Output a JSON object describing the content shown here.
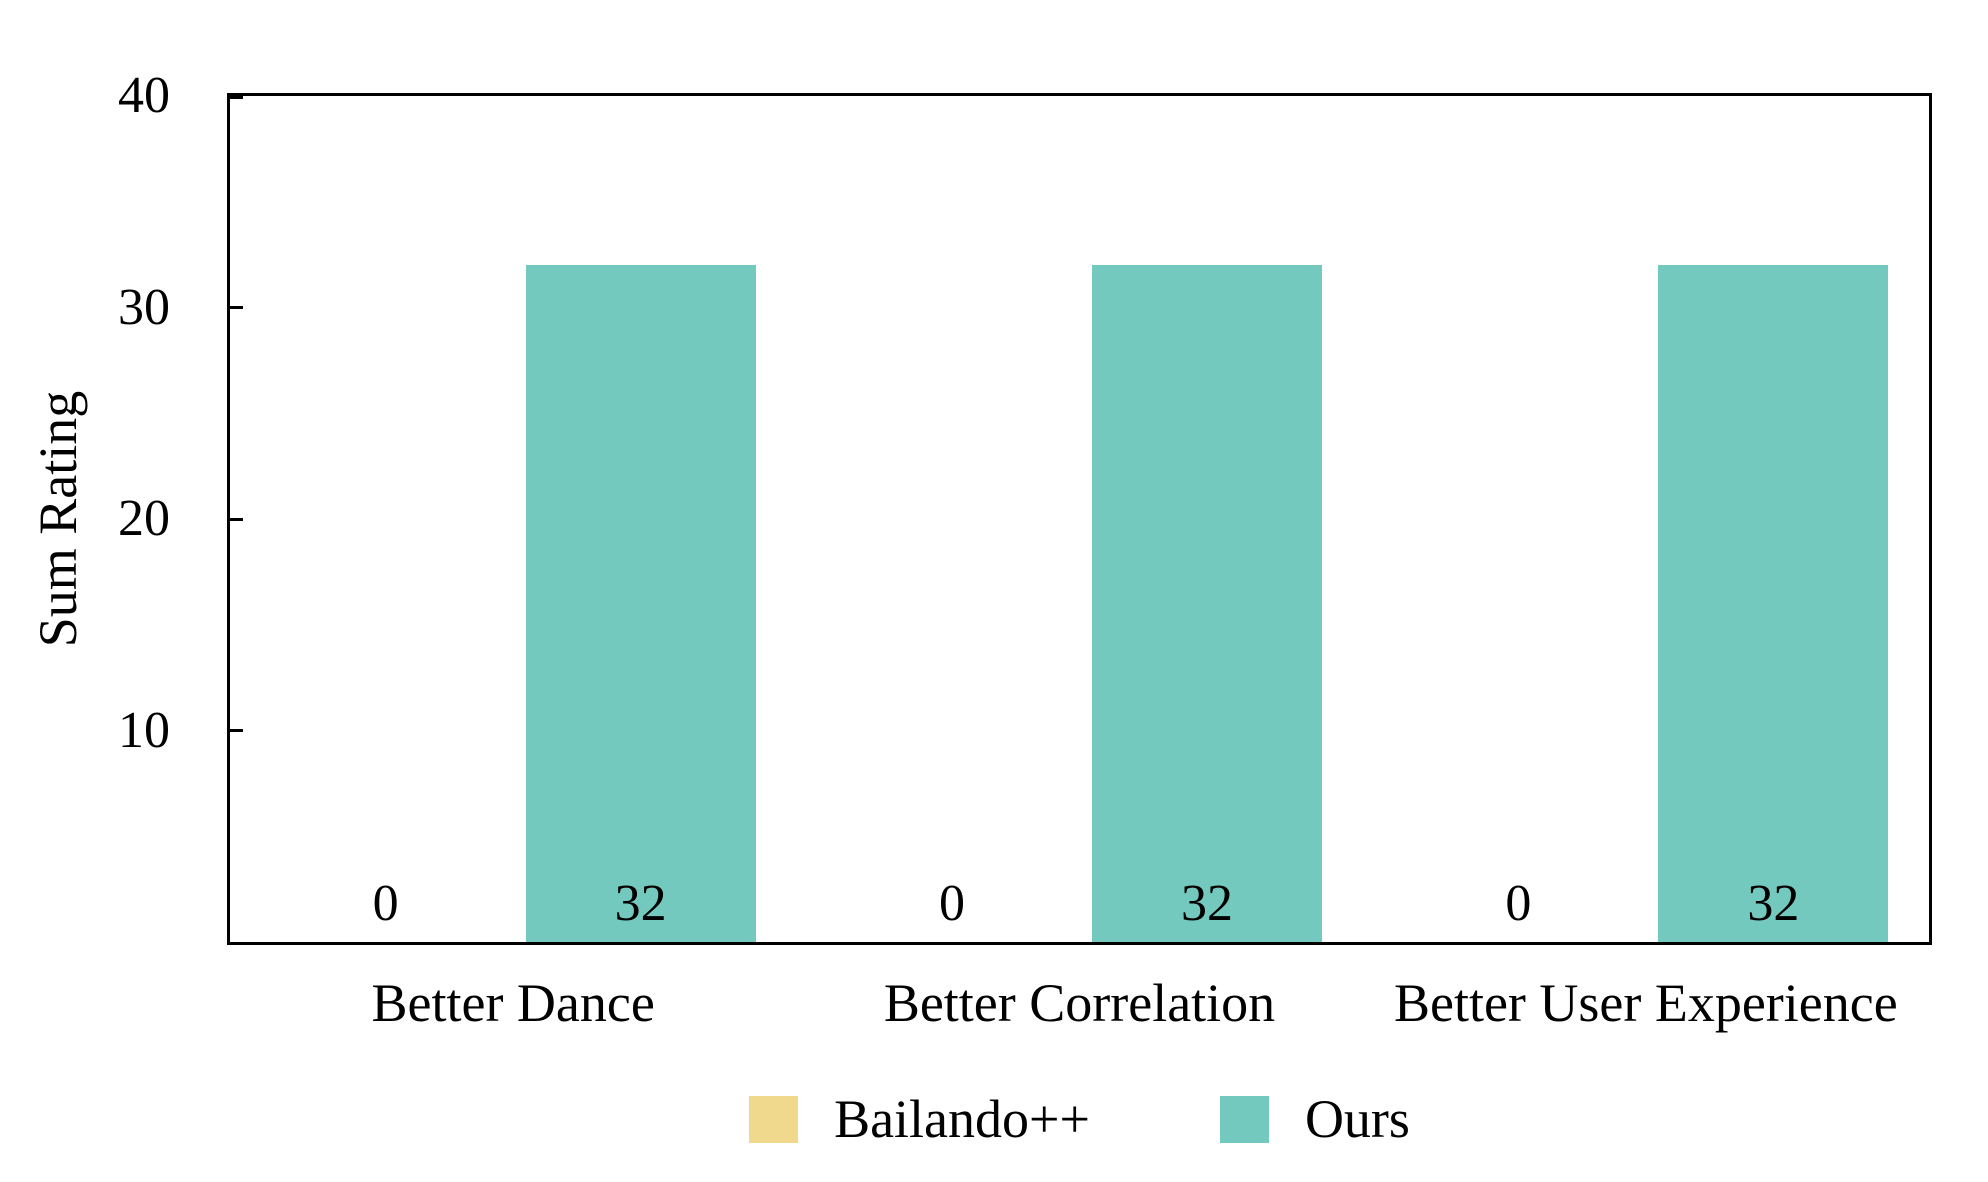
{
  "figure": {
    "background": "#ffffff",
    "text_color": "#000000",
    "axis_color": "#000000"
  },
  "chart_data": {
    "type": "bar",
    "title": "",
    "xlabel": "",
    "ylabel": "Sum Rating",
    "categories": [
      "Better Dance",
      "Better Correlation",
      "Better User Experience"
    ],
    "series": [
      {
        "name": "Bailando++",
        "color": "#F0D98C",
        "values": [
          0,
          0,
          0
        ]
      },
      {
        "name": "Ours",
        "color": "#73C9BE",
        "values": [
          32,
          32,
          32
        ]
      }
    ],
    "bar_value_labels": [
      [
        "0",
        "0",
        "0"
      ],
      [
        "32",
        "32",
        "32"
      ]
    ],
    "ylim": [
      0,
      40
    ],
    "yticks": [
      10,
      20,
      30,
      40
    ],
    "grid": false,
    "legend_position": "bottom-center"
  }
}
